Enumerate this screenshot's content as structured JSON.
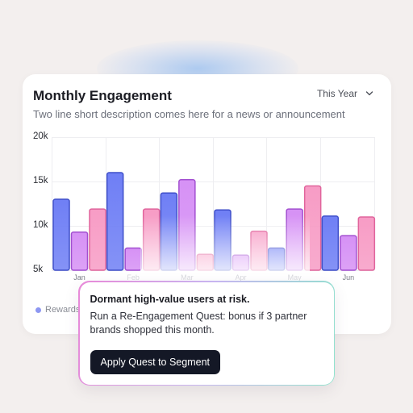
{
  "card": {
    "title": "Monthly Engagement",
    "period_label": "This Year",
    "description": "Two line short description comes here for a news or announcement"
  },
  "legend": {
    "label": "Rewards",
    "color": "#8d97f2"
  },
  "chart_data": {
    "type": "bar",
    "categories": [
      "Jan",
      "Feb",
      "Mar",
      "Apr",
      "May",
      "Jun"
    ],
    "y_tick_labels": [
      "20k",
      "15k",
      "10k",
      "5k"
    ],
    "ylim": [
      5000,
      20000
    ],
    "visible_x_labels": [
      "Jan",
      "Mai",
      "Jun"
    ],
    "series": [
      {
        "values": [
          13000,
          16000,
          13700,
          11800,
          7500,
          11100
        ],
        "color": "#6f7ff5"
      },
      {
        "values": [
          9300,
          7500,
          15200,
          6700,
          11900,
          8900
        ],
        "color": "#d691f5"
      },
      {
        "values": [
          11900,
          11900,
          6800,
          9400,
          14500,
          11000
        ],
        "color": "#f79cc5"
      }
    ],
    "grid": true
  },
  "popup": {
    "title": "Dormant high-value users at risk.",
    "body": "Run a Re-Engagement Quest: bonus if 3 partner brands shopped this month.",
    "cta_label": "Apply Quest to Segment"
  }
}
